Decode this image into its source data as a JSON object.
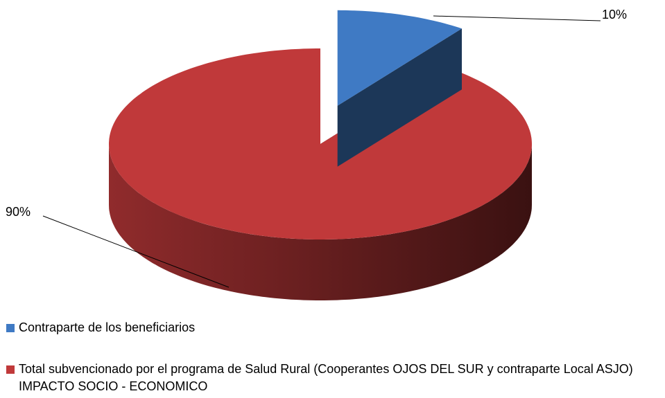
{
  "chart_data": {
    "type": "pie",
    "categories": [
      "Contraparte de los beneficiarios",
      "Total  subvencionado por el programa  de Salud Rural (Cooperantes OJOS DEL SUR  y contraparte Local ASJO)   IMPACTO SOCIO - ECONOMICO"
    ],
    "values": [
      10,
      90
    ],
    "value_labels": [
      "10%",
      "90%"
    ],
    "colors": [
      "#3f7ac4",
      "#c0393a"
    ],
    "legend": "bottom"
  }
}
